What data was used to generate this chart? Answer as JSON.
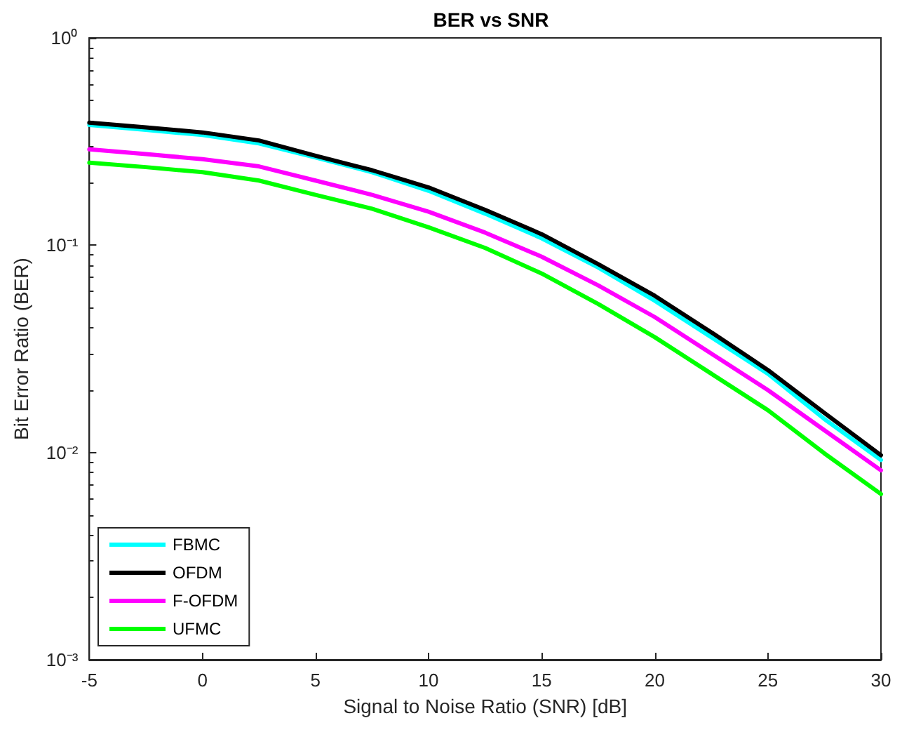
{
  "chart_data": {
    "type": "line",
    "title": "BER vs SNR",
    "xlabel": "Signal to Noise Ratio (SNR) [dB]",
    "ylabel": "Bit Error Ratio (BER)",
    "x": [
      -5,
      -2.5,
      0,
      2.5,
      5,
      7.5,
      10,
      12.5,
      15,
      17.5,
      20,
      22.5,
      25,
      27.5,
      30
    ],
    "series": [
      {
        "name": "FBMC",
        "color": "#00ffff",
        "values": [
          0.38,
          0.36,
          0.34,
          0.31,
          0.265,
          0.225,
          0.183,
          0.142,
          0.108,
          0.078,
          0.054,
          0.036,
          0.024,
          0.0145,
          0.0092
        ]
      },
      {
        "name": "OFDM",
        "color": "#000000",
        "values": [
          0.39,
          0.37,
          0.35,
          0.32,
          0.27,
          0.23,
          0.19,
          0.148,
          0.113,
          0.081,
          0.057,
          0.038,
          0.025,
          0.0155,
          0.0097
        ]
      },
      {
        "name": "F-OFDM",
        "color": "#ff00ff",
        "values": [
          0.29,
          0.275,
          0.26,
          0.24,
          0.205,
          0.175,
          0.145,
          0.115,
          0.088,
          0.064,
          0.045,
          0.03,
          0.02,
          0.0128,
          0.0082
        ]
      },
      {
        "name": "UFMC",
        "color": "#00ff00",
        "values": [
          0.25,
          0.238,
          0.225,
          0.205,
          0.175,
          0.15,
          0.122,
          0.097,
          0.073,
          0.052,
          0.036,
          0.024,
          0.016,
          0.0099,
          0.0063
        ]
      }
    ],
    "xlim": [
      -5,
      30
    ],
    "xticks": [
      -5,
      0,
      5,
      10,
      15,
      20,
      25,
      30
    ],
    "ylim": [
      0.001,
      1
    ],
    "yticks": [
      {
        "value": 0.001,
        "label": "10⁻³"
      },
      {
        "value": 0.01,
        "label": "10⁻²"
      },
      {
        "value": 0.1,
        "label": "10⁻¹"
      },
      {
        "value": 1,
        "label": "10⁰"
      }
    ],
    "log": "y",
    "grid": false,
    "legend": "bottom left",
    "marker": "none",
    "line_style": "solid"
  }
}
